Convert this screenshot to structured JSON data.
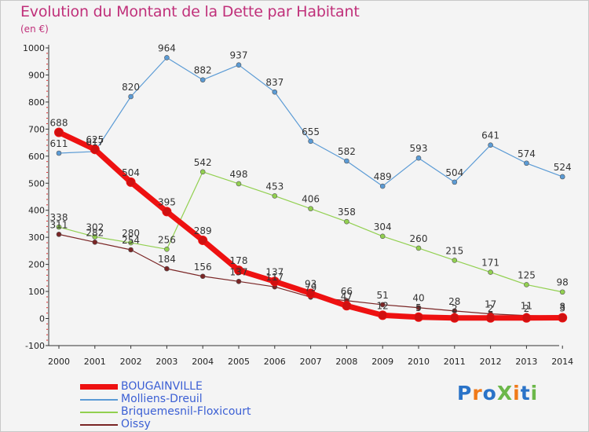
{
  "header": {
    "title": "Evolution du Montant de la Dette par Habitant",
    "unit": "(en €)"
  },
  "colors": {
    "title": "#c0307a",
    "legend_text": "#3b5fd4",
    "BOUGAINVILLE": "#ee1111",
    "Molliens-Dreuil": "#5b9bd5",
    "Briquemesnil-Floxicourt": "#92d050",
    "Oissy": "#7a2525"
  },
  "logo": {
    "text": "ProXiti",
    "colors": [
      "#2a73c8",
      "#f07a1a",
      "#6cb84a"
    ]
  },
  "chart_data": {
    "type": "line",
    "title": "Evolution du Montant de la Dette par Habitant",
    "ylabel": "(en €)",
    "xlabel": "",
    "x": [
      "2000",
      "2001",
      "2002",
      "2003",
      "2004",
      "2005",
      "2006",
      "2007",
      "2008",
      "2009",
      "2010",
      "2011",
      "2012",
      "2013",
      "2014"
    ],
    "ylim": [
      -100,
      1000
    ],
    "yticks": [
      -100,
      0,
      100,
      200,
      300,
      400,
      500,
      600,
      700,
      800,
      900,
      1000
    ],
    "grid": false,
    "legend_position": "bottom-left",
    "series": [
      {
        "name": "Molliens-Dreuil",
        "color": "#5b9bd5",
        "width": 1.2,
        "values": [
          611,
          617,
          820,
          964,
          882,
          937,
          837,
          655,
          582,
          489,
          593,
          504,
          641,
          574,
          524
        ],
        "labels": [
          "611",
          "617",
          "820",
          "964",
          "882",
          "937",
          "837",
          "655",
          "582",
          "489",
          "593",
          "504",
          "641",
          "574",
          "524"
        ]
      },
      {
        "name": "Briquemesnil-Floxicourt",
        "color": "#92d050",
        "width": 1.2,
        "values": [
          338,
          302,
          280,
          256,
          542,
          498,
          453,
          406,
          358,
          304,
          260,
          215,
          171,
          125,
          98
        ],
        "labels": [
          "338",
          "302",
          "280",
          "256",
          "542",
          "498",
          "453",
          "406",
          "358",
          "304",
          "260",
          "215",
          "171",
          "125",
          "98"
        ]
      },
      {
        "name": "Oissy",
        "color": "#7a2525",
        "width": 1.2,
        "values": [
          311,
          282,
          254,
          184,
          156,
          137,
          117,
          79,
          66,
          51,
          40,
          28,
          17,
          11,
          8
        ],
        "labels": [
          "311",
          "282",
          "254",
          "184",
          "156",
          "137",
          "117",
          "79",
          "66",
          "51",
          "40",
          "28",
          "17",
          "11",
          "8"
        ]
      },
      {
        "name": "BOUGAINVILLE",
        "color": "#ee1111",
        "width": 7,
        "values": [
          688,
          625,
          504,
          395,
          289,
          178,
          137,
          93,
          47,
          12,
          5,
          2,
          2,
          2,
          3
        ],
        "labels": [
          "688",
          "625",
          "504",
          "395",
          "289",
          "178",
          "137",
          "93",
          "47",
          "12",
          "5",
          "2",
          "2",
          "2",
          "3"
        ]
      }
    ]
  }
}
